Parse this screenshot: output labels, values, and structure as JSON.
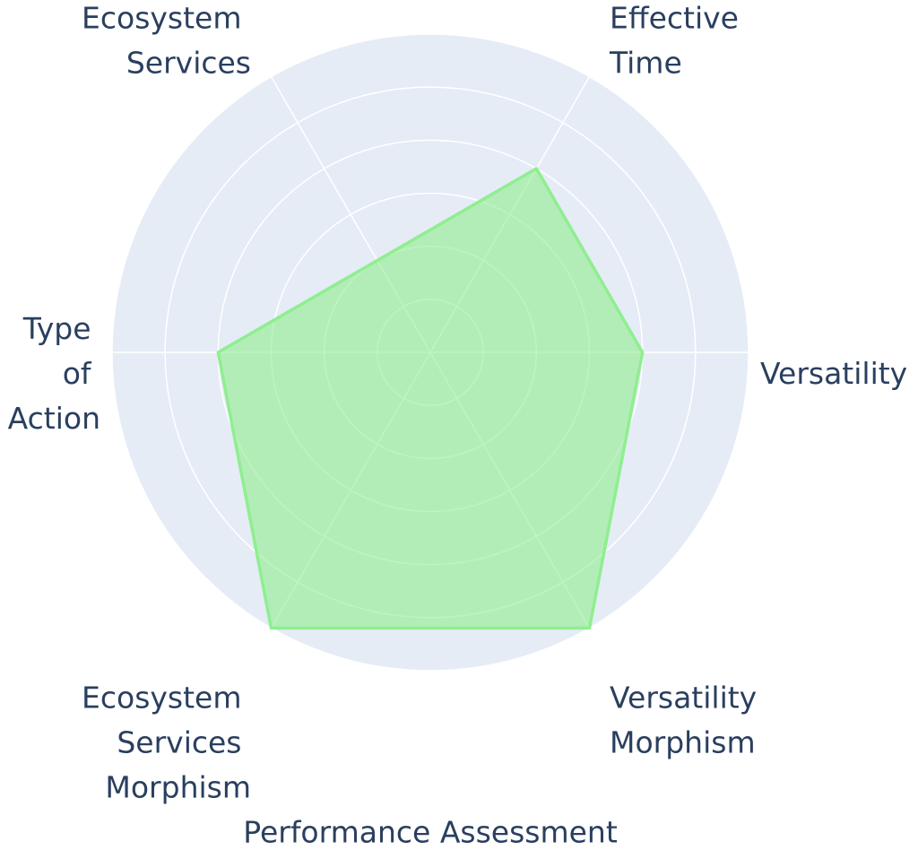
{
  "chart_data": {
    "type": "radar",
    "title": "Performance Assessment",
    "categories": [
      "Versatility",
      "Effective Time",
      "Ecosystem Services",
      "Type of Action",
      "Ecosystem Services Morphism",
      "Versatility Morphism"
    ],
    "values": [
      4,
      4,
      2,
      4,
      6,
      6
    ],
    "color": "#90ee90",
    "rlim": [
      0,
      6
    ],
    "rticks": [
      1,
      2,
      3,
      4,
      5,
      6
    ],
    "grid": true
  }
}
